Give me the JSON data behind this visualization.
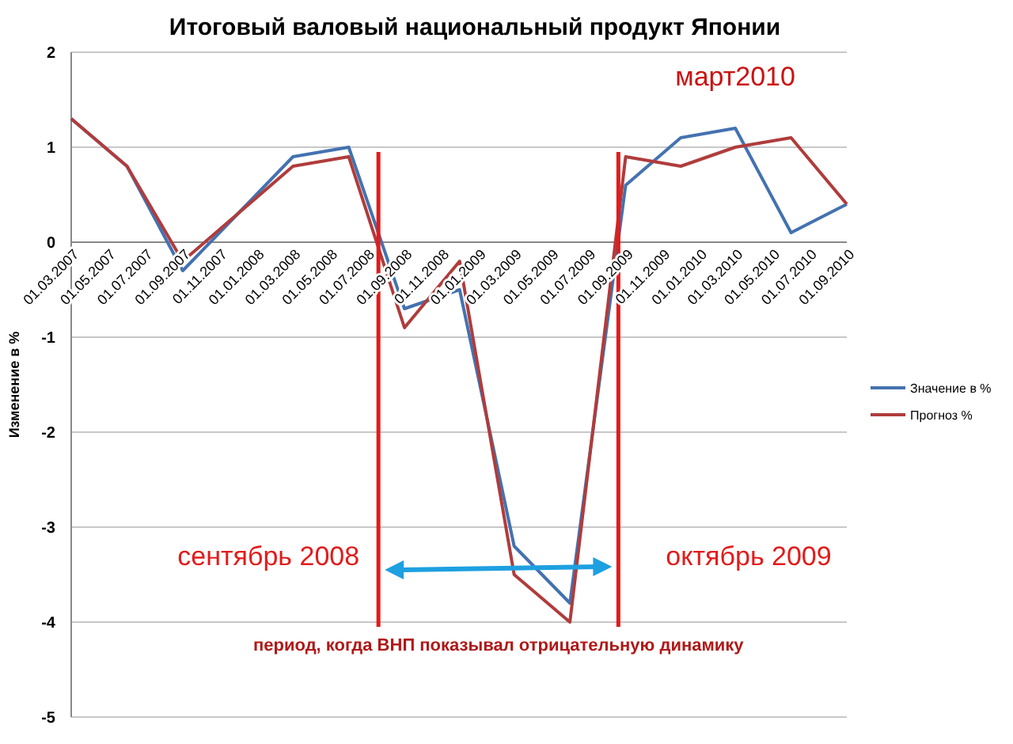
{
  "chart_data": {
    "type": "line",
    "title": "Итоговый валовый национальный продукт Японии",
    "ylabel": "Изменение в %",
    "x": [
      "2007-03",
      "2007-06",
      "2007-09",
      "2007-12",
      "2008-03",
      "2008-06",
      "2008-09",
      "2008-12",
      "2009-03",
      "2009-06",
      "2009-09",
      "2009-12",
      "2010-03",
      "2010-06",
      "2010-09"
    ],
    "series": [
      {
        "name": "Значение в %",
        "color": "#4472b0",
        "values": [
          1.3,
          0.8,
          -0.3,
          0.3,
          0.9,
          1.0,
          -0.7,
          -0.5,
          -3.2,
          -3.8,
          0.6,
          1.1,
          1.2,
          0.1,
          0.4
        ]
      },
      {
        "name": "Прогноз %",
        "color": "#b03c3c",
        "values": [
          1.3,
          0.8,
          -0.2,
          0.3,
          0.8,
          0.9,
          -0.9,
          -0.2,
          -3.5,
          -4.0,
          0.9,
          0.8,
          1.0,
          1.1,
          0.4
        ]
      }
    ],
    "xlim": [
      "2007-03-01",
      "2010-09-01"
    ],
    "xticks": [
      {
        "value": "2007-03-01",
        "label": "01.03.2007"
      },
      {
        "value": "2007-05-01",
        "label": "01.05.2007"
      },
      {
        "value": "2007-07-01",
        "label": "01.07.2007"
      },
      {
        "value": "2007-09-01",
        "label": "01.09.2007"
      },
      {
        "value": "2007-11-01",
        "label": "01.11.2007"
      },
      {
        "value": "2008-01-01",
        "label": "01.01.2008"
      },
      {
        "value": "2008-03-01",
        "label": "01.03.2008"
      },
      {
        "value": "2008-05-01",
        "label": "01.05.2008"
      },
      {
        "value": "2008-07-01",
        "label": "01.07.2008"
      },
      {
        "value": "2008-09-01",
        "label": "01.09.2008"
      },
      {
        "value": "2008-11-01",
        "label": "01.11.2008"
      },
      {
        "value": "2009-01-01",
        "label": "01.01.2009"
      },
      {
        "value": "2009-03-01",
        "label": "01.03.2009"
      },
      {
        "value": "2009-05-01",
        "label": "01.05.2009"
      },
      {
        "value": "2009-07-01",
        "label": "01.07.2009"
      },
      {
        "value": "2009-09-01",
        "label": "01.09.2009"
      },
      {
        "value": "2009-11-01",
        "label": "01.11.2009"
      },
      {
        "value": "2010-01-01",
        "label": "01.01.2010"
      },
      {
        "value": "2010-03-01",
        "label": "01.03.2010"
      },
      {
        "value": "2010-05-01",
        "label": "01.05.2010"
      },
      {
        "value": "2010-07-01",
        "label": "01.07.2010"
      },
      {
        "value": "2010-09-01",
        "label": "01.09.2010"
      }
    ],
    "ylim": [
      -5,
      2
    ],
    "yticks": [
      -5,
      -4,
      -3,
      -2,
      -1,
      0,
      1,
      2
    ],
    "grid": "y",
    "legend": "right",
    "ref_lines": [
      {
        "axis": "x",
        "value": "2008-07-20",
        "label": "сентябрь 2008",
        "color": "#e31b1b"
      },
      {
        "axis": "x",
        "value": "2009-08-20",
        "label": "октябрь 2009",
        "color": "#e31b1b"
      }
    ],
    "annotations": [
      {
        "text": "март2010",
        "x": "2010-03",
        "y": 1.2
      },
      "период, когда ВНП показывал отрицательную динамику"
    ]
  }
}
